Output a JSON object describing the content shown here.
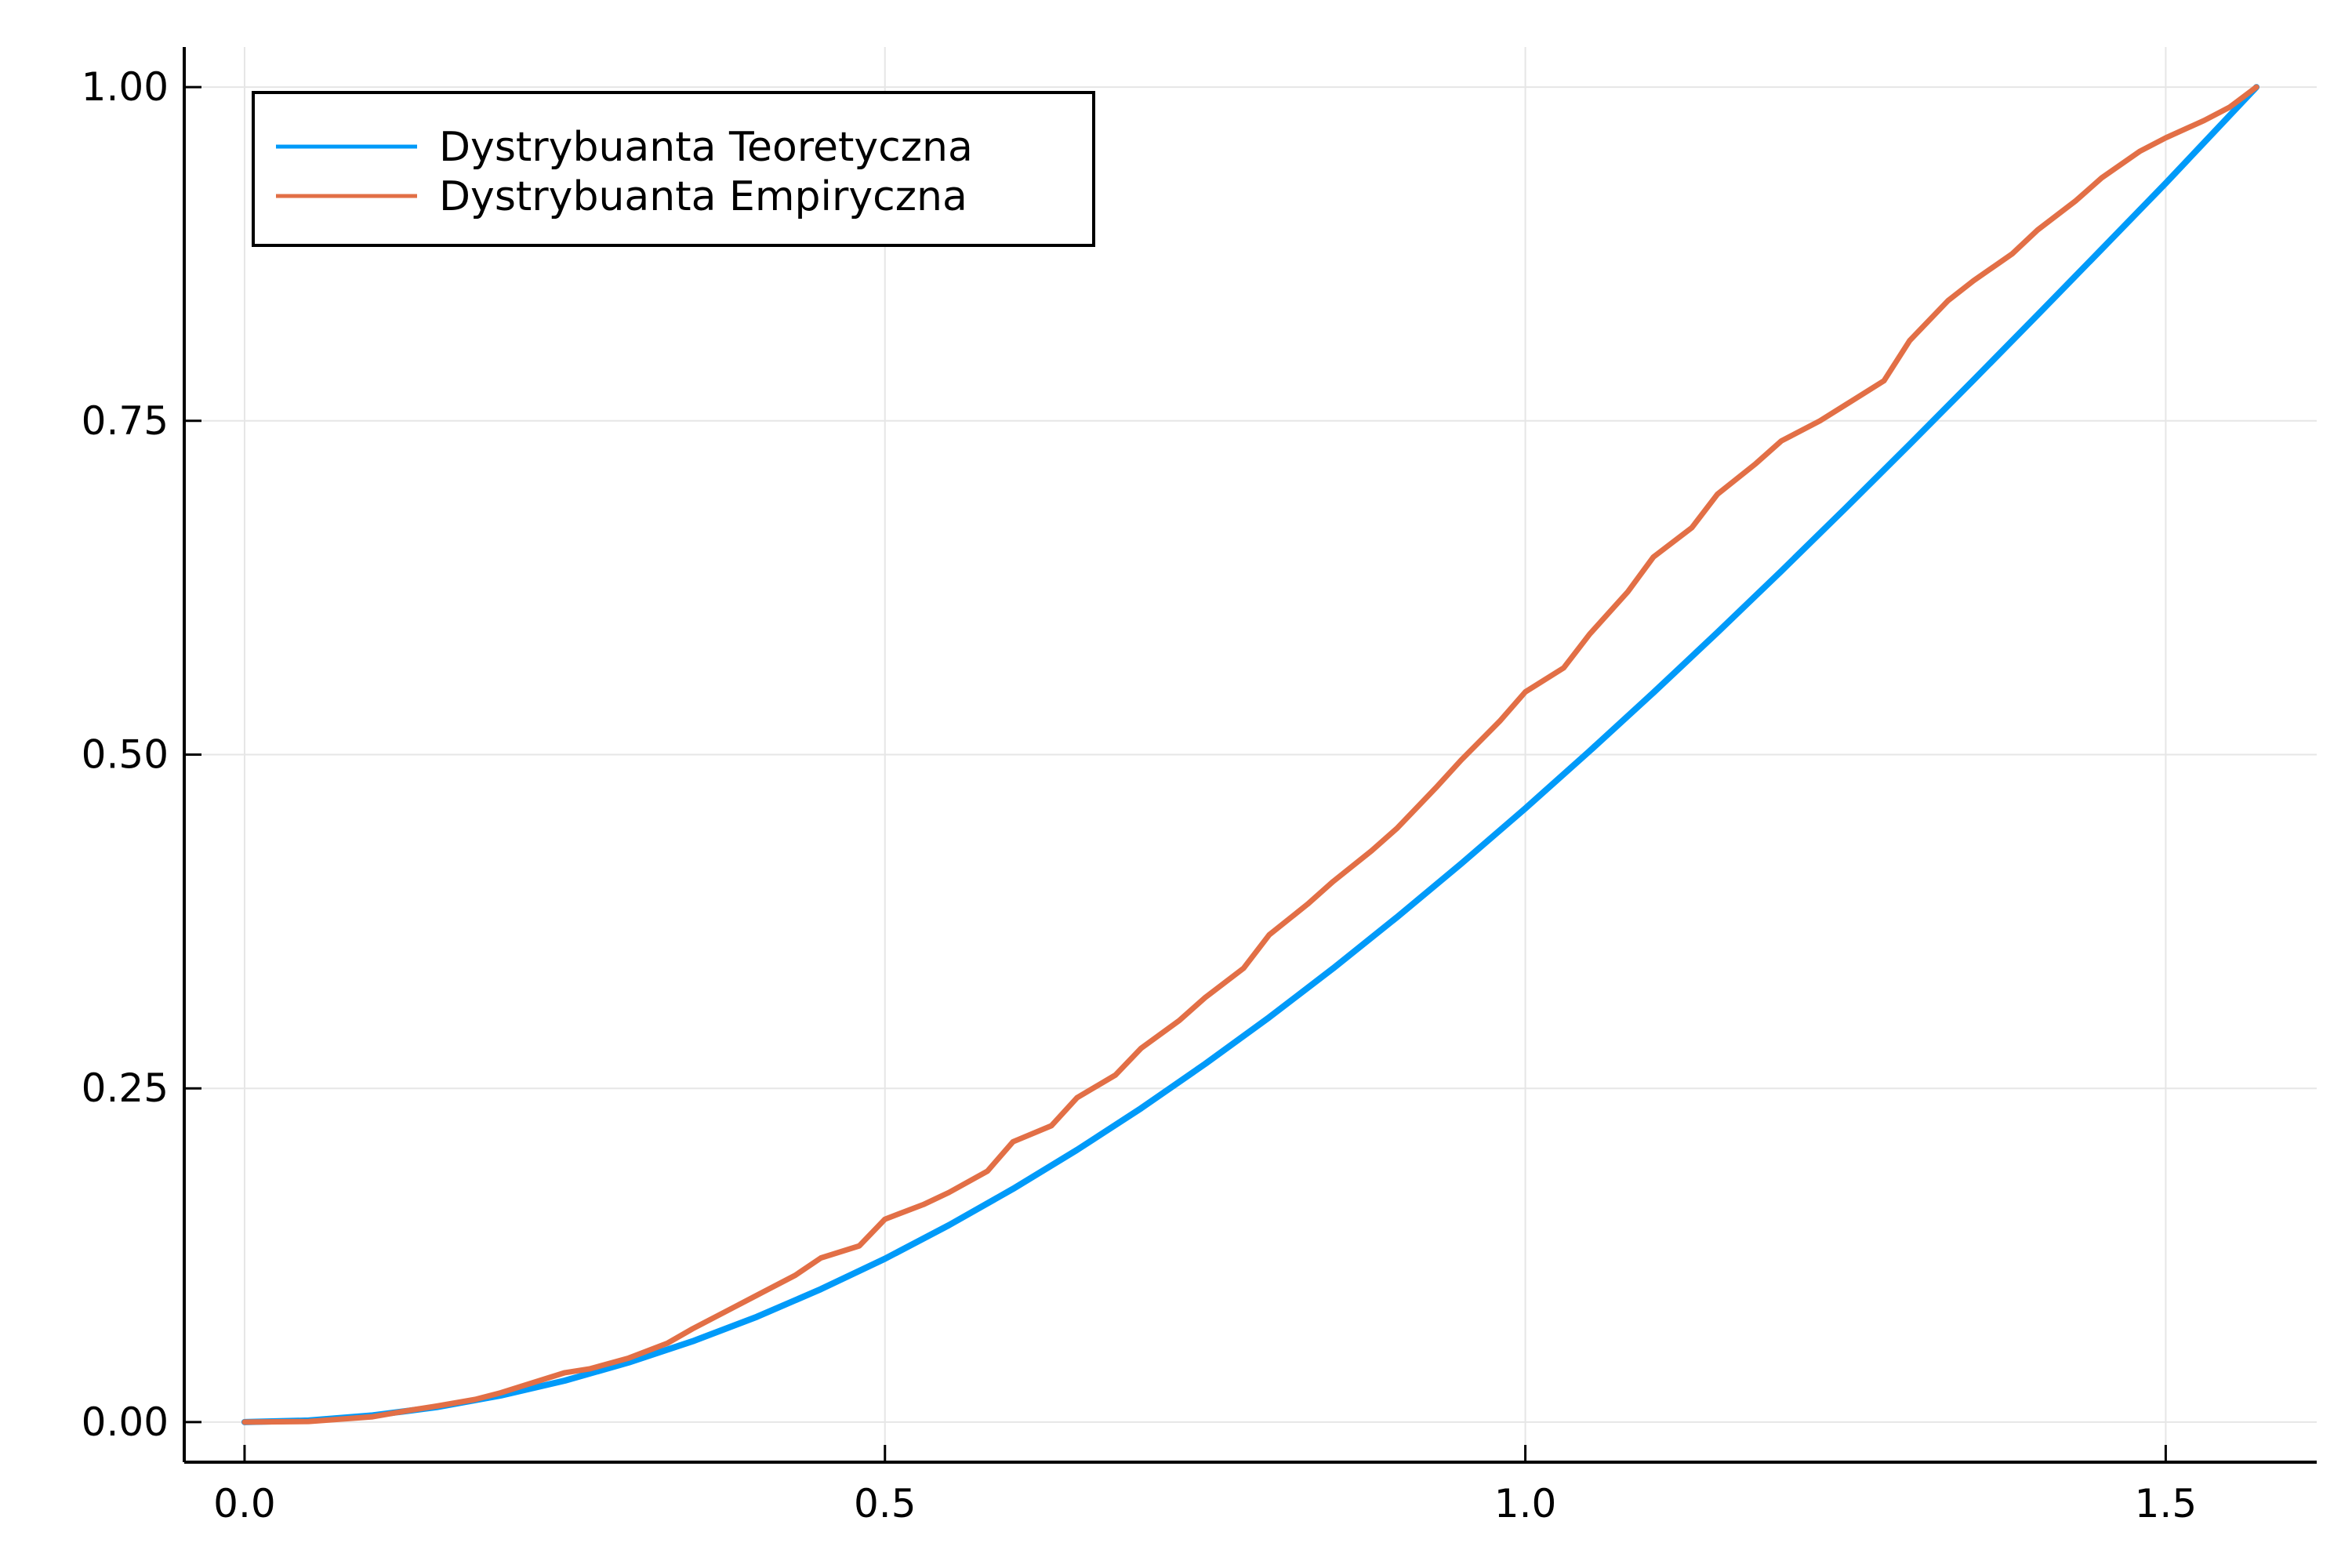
{
  "chart_data": {
    "type": "line",
    "title": "",
    "xlabel": "",
    "ylabel": "",
    "xlim": [
      -0.0471,
      1.6179
    ],
    "ylim": [
      -0.03,
      1.03
    ],
    "grid": true,
    "legend_position": "top-left",
    "x_ticks": [
      {
        "value": 0.0,
        "label": "0.0"
      },
      {
        "value": 0.5,
        "label": "0.5"
      },
      {
        "value": 1.0,
        "label": "1.0"
      },
      {
        "value": 1.5,
        "label": "1.5"
      }
    ],
    "y_ticks": [
      {
        "value": 0.0,
        "label": "0.00"
      },
      {
        "value": 0.25,
        "label": "0.25"
      },
      {
        "value": 0.5,
        "label": "0.50"
      },
      {
        "value": 0.75,
        "label": "0.75"
      },
      {
        "value": 1.0,
        "label": "1.00"
      }
    ],
    "series": [
      {
        "name": "Dystrybuanta Teoretyczna",
        "color": "#009af9",
        "x": [
          0.0,
          0.05,
          0.1,
          0.15,
          0.2,
          0.25,
          0.3,
          0.35,
          0.4,
          0.45,
          0.5,
          0.55,
          0.6,
          0.65,
          0.7,
          0.75,
          0.8,
          0.85,
          0.9,
          0.95,
          1.0,
          1.05,
          1.1,
          1.15,
          1.2,
          1.25,
          1.3,
          1.35,
          1.4,
          1.45,
          1.5,
          1.5708
        ],
        "values": [
          0.0,
          0.0012,
          0.005,
          0.0112,
          0.0199,
          0.0311,
          0.0447,
          0.0606,
          0.0789,
          0.0996,
          0.1224,
          0.1475,
          0.1747,
          0.2039,
          0.2351,
          0.2683,
          0.3032,
          0.3399,
          0.3784,
          0.4183,
          0.4597,
          0.5025,
          0.5464,
          0.5915,
          0.6376,
          0.6846,
          0.7323,
          0.7806,
          0.8294,
          0.8786,
          0.928,
          1.0
        ]
      },
      {
        "name": "Dystrybuanta Empiryczna",
        "color": "#e26f46",
        "x": [
          0.0,
          0.05,
          0.1,
          0.13,
          0.15,
          0.18,
          0.2,
          0.23,
          0.25,
          0.27,
          0.3,
          0.33,
          0.35,
          0.38,
          0.4,
          0.43,
          0.45,
          0.48,
          0.5,
          0.53,
          0.55,
          0.58,
          0.6,
          0.63,
          0.65,
          0.68,
          0.7,
          0.73,
          0.75,
          0.78,
          0.8,
          0.83,
          0.85,
          0.88,
          0.9,
          0.93,
          0.95,
          0.98,
          1.0,
          1.03,
          1.05,
          1.08,
          1.1,
          1.13,
          1.15,
          1.18,
          1.2,
          1.23,
          1.25,
          1.28,
          1.3,
          1.33,
          1.35,
          1.38,
          1.4,
          1.43,
          1.45,
          1.48,
          1.5,
          1.53,
          1.55,
          1.5708
        ],
        "values": [
          0.0,
          0.0005,
          0.004,
          0.009,
          0.012,
          0.017,
          0.022,
          0.031,
          0.037,
          0.04,
          0.048,
          0.059,
          0.07,
          0.085,
          0.095,
          0.11,
          0.123,
          0.132,
          0.152,
          0.163,
          0.172,
          0.188,
          0.21,
          0.222,
          0.243,
          0.26,
          0.28,
          0.301,
          0.318,
          0.34,
          0.365,
          0.388,
          0.405,
          0.428,
          0.445,
          0.475,
          0.496,
          0.525,
          0.547,
          0.565,
          0.59,
          0.622,
          0.648,
          0.67,
          0.695,
          0.718,
          0.735,
          0.75,
          0.762,
          0.78,
          0.81,
          0.84,
          0.855,
          0.875,
          0.893,
          0.915,
          0.932,
          0.952,
          0.962,
          0.975,
          0.985,
          1.0
        ]
      }
    ]
  }
}
